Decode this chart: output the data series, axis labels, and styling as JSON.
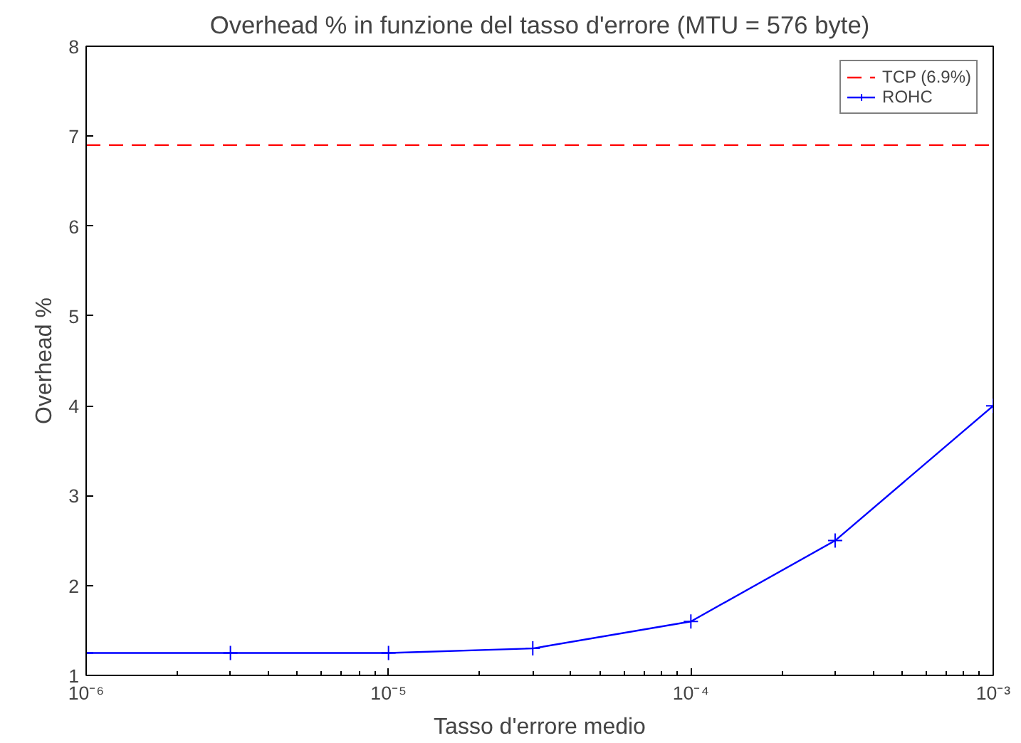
{
  "chart_data": {
    "type": "line",
    "title": "Overhead % in funzione del tasso d'errore (MTU = 576 byte)",
    "xlabel": "Tasso d'errore medio",
    "ylabel": "Overhead %",
    "log": "x",
    "xlim": [
      1e-06,
      0.001
    ],
    "ylim": [
      1,
      8
    ],
    "xticks": [
      {
        "value": 1e-06,
        "label": "10⁻⁶"
      },
      {
        "value": 1e-05,
        "label": "10⁻⁵"
      },
      {
        "value": 0.0001,
        "label": "10⁻⁴"
      },
      {
        "value": 0.001,
        "label": "10⁻³"
      }
    ],
    "yticks": [
      1,
      2,
      3,
      4,
      5,
      6,
      7,
      8
    ],
    "grid": false,
    "legend": "top right",
    "series": [
      {
        "name": "TCP (6.9%)",
        "color": "#ff0000",
        "line_style": "dashed",
        "marker": "none",
        "x": [
          1e-06,
          0.001
        ],
        "values": [
          6.9,
          6.9
        ]
      },
      {
        "name": "ROHC",
        "color": "#0000ff",
        "line_style": "solid",
        "marker": "cross",
        "x": [
          1e-06,
          3e-06,
          1e-05,
          3e-05,
          0.0001,
          0.0003,
          0.001
        ],
        "values": [
          1.25,
          1.25,
          1.25,
          1.3,
          1.6,
          2.5,
          4.0
        ]
      }
    ]
  }
}
